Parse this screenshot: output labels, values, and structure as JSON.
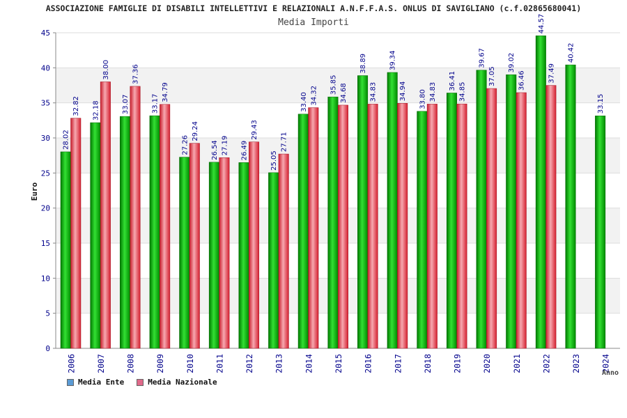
{
  "chart_data": {
    "type": "bar",
    "title": "ASSOCIAZIONE FAMIGLIE DI DISABILI INTELLETTIVI E RELAZIONALI A.N.F.F.A.S. ONLUS DI SAVIGLIANO (c.f.02865680041)",
    "subtitle": "Media Importi",
    "xlabel": "Anno",
    "ylabel": "Euro",
    "ylim": [
      0,
      45
    ],
    "yticks": [
      0,
      5,
      10,
      15,
      20,
      25,
      30,
      35,
      40,
      45
    ],
    "categories": [
      "2006",
      "2007",
      "2008",
      "2009",
      "2010",
      "2011",
      "2012",
      "2013",
      "2014",
      "2015",
      "2016",
      "2017",
      "2018",
      "2019",
      "2020",
      "2021",
      "2022",
      "2023",
      "2024"
    ],
    "series": [
      {
        "name": "Media Ente",
        "values": [
          28.02,
          32.18,
          33.07,
          33.17,
          27.26,
          26.54,
          26.49,
          25.05,
          33.4,
          35.85,
          38.89,
          39.34,
          33.8,
          36.41,
          39.67,
          39.02,
          44.57,
          40.42,
          33.15
        ],
        "labels": [
          "28.02",
          "32.18",
          "33.07",
          "33.17",
          "27.26",
          "26.54",
          "26.49",
          "25.05",
          "33.40",
          "35.85",
          "38.89",
          "39.34",
          "33.80",
          "36.41",
          "39.67",
          "39.02",
          "44.57",
          "40.42",
          "33.15"
        ]
      },
      {
        "name": "Media Nazionale",
        "values": [
          32.82,
          38.0,
          37.36,
          34.79,
          29.24,
          27.19,
          29.43,
          27.71,
          34.32,
          34.68,
          34.83,
          34.94,
          34.83,
          34.85,
          37.05,
          36.46,
          37.49,
          null,
          null
        ],
        "labels": [
          "32.82",
          "38.00",
          "37.36",
          "34.79",
          "29.24",
          "27.19",
          "29.43",
          "27.71",
          "34.32",
          "34.68",
          "34.83",
          "34.94",
          "34.83",
          "34.85",
          "37.05",
          "36.46",
          "37.49",
          null,
          null
        ]
      }
    ],
    "legend": [
      {
        "name": "Media Ente",
        "color": "#5b9bd5"
      },
      {
        "name": "Media Nazionale",
        "color": "#e06a8a"
      }
    ],
    "legend_position": "bottom-left",
    "grid": true
  },
  "colors": {
    "ente_dark": "#008a00",
    "ente_light": "#33dd33",
    "naz_dark": "#d42030",
    "naz_light": "#f7a0a8",
    "axis_text": "#00008b",
    "band": "#f2f2f2"
  }
}
